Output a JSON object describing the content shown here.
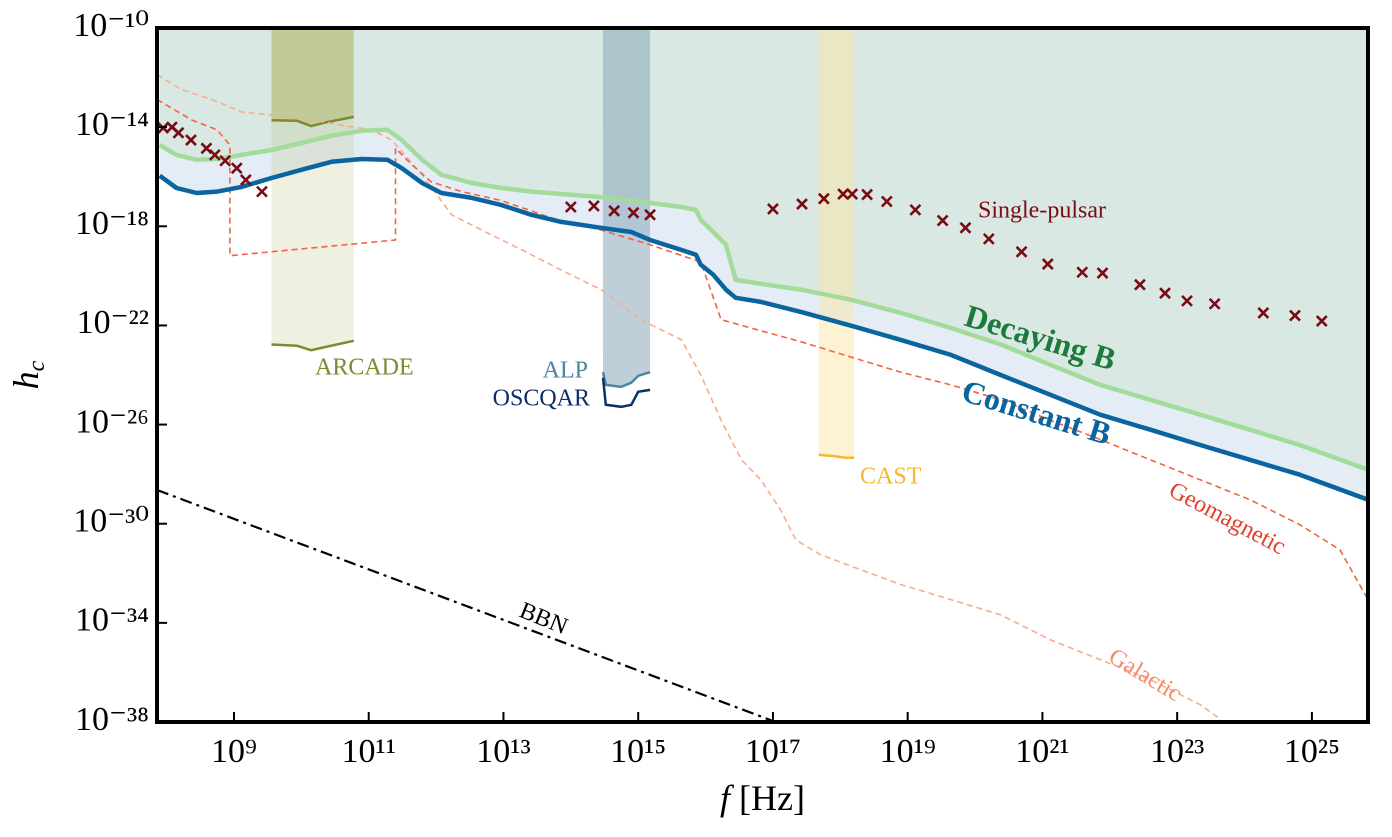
{
  "chart_data": {
    "type": "line",
    "xscale": "log",
    "yscale": "log",
    "xlim": [
      72000000.0,
      6.8e+25
    ],
    "ylim": [
      1e-38,
      1e-10
    ],
    "xticks": [
      {
        "value": 1000000000.0,
        "label": "10⁹"
      },
      {
        "value": 100000000000.0,
        "label": "10¹¹"
      },
      {
        "value": 10000000000000.0,
        "label": "10¹³"
      },
      {
        "value": 1000000000000000.0,
        "label": "10¹⁵"
      },
      {
        "value": 1e+17,
        "label": "10¹⁷"
      },
      {
        "value": 1e+19,
        "label": "10¹⁹"
      },
      {
        "value": 1e+21,
        "label": "10²¹"
      },
      {
        "value": 1e+23,
        "label": "10²³"
      },
      {
        "value": 1e+25,
        "label": "10²⁵"
      }
    ],
    "yticks": [
      {
        "value": 1e-10,
        "label": "10⁻¹⁰"
      },
      {
        "value": 1e-14,
        "label": "10⁻¹⁴"
      },
      {
        "value": 1e-18,
        "label": "10⁻¹⁸"
      },
      {
        "value": 1e-22,
        "label": "10⁻²²"
      },
      {
        "value": 1e-26,
        "label": "10⁻²⁶"
      },
      {
        "value": 1e-30,
        "label": "10⁻³⁰"
      },
      {
        "value": 1e-34,
        "label": "10⁻³⁴"
      },
      {
        "value": 1e-38,
        "label": "10⁻³⁸"
      }
    ],
    "x_label": {
      "symbol": "f",
      "unit": "[Hz]"
    },
    "y_label": {
      "symbol": "h",
      "subscript": "c"
    },
    "series": [
      {
        "name": "Constant B⃗",
        "color": "#0a64a0",
        "label_color": "#0a64a0",
        "dash": "solid",
        "width": 4.5,
        "fill": "#e4edf6",
        "x": [
          79000000.0,
          140000000.0,
          280000000.0,
          560000000.0,
          1300000000.0,
          3600000000.0,
          10000000000.0,
          28000000000.0,
          79000000000.0,
          190000000000.0,
          310000000000.0,
          620000000000.0,
          1200000000000.0,
          3400000000000.0,
          9300000000000.0,
          26000000000000.0,
          72000000000000.0,
          280000000000000.0,
          790000000000000.0,
          1500000000000000.0,
          4400000000000000.0,
          7200000000000000.0,
          8500000000000000.0,
          1.3e+16,
          2e+16,
          2.8e+16,
          6.6e+16,
          2.6e+17,
          1.4e+18,
          7.9e+18,
          4.4e+19,
          2.4e+20,
          1.3e+21,
          7.2e+21,
          4e+22,
          2.2e+23,
          1.2e+24,
          6.6e+24,
          6.8e+25
        ],
        "values": [
          1.1e-16,
          3.5e-17,
          2.2e-17,
          2.5e-17,
          3.9e-17,
          8.9e-17,
          1.9e-16,
          4e-16,
          5.2e-16,
          4.8e-16,
          2.2e-16,
          5.6e-17,
          2.2e-17,
          1.4e-17,
          7.2e-18,
          2.9e-18,
          1.5e-18,
          8.7e-19,
          5.9e-19,
          2.8e-19,
          1.1e-19,
          7.1e-20,
          2.8e-20,
          1.1e-20,
          2.8e-21,
          1.3e-21,
          8.9e-22,
          3.5e-22,
          1e-22,
          2.6e-23,
          6.5e-24,
          1e-24,
          1.6e-25,
          2.5e-26,
          6.2e-27,
          1.5e-27,
          3.8e-28,
          9.5e-29,
          9.3e-30
        ]
      },
      {
        "name": "Decaying B⃗",
        "color": "#a3dc9a",
        "label_color": "#1b7a3c",
        "dash": "solid",
        "width": 4.5,
        "fill": "#d9e8e3",
        "x": [
          79000000.0,
          140000000.0,
          280000000.0,
          560000000.0,
          1300000000.0,
          3600000000.0,
          10000000000.0,
          28000000000.0,
          79000000000.0,
          190000000000.0,
          310000000000.0,
          620000000000.0,
          1200000000000.0,
          3400000000000.0,
          9300000000000.0,
          26000000000000.0,
          72000000000000.0,
          280000000000000.0,
          790000000000000.0,
          1500000000000000.0,
          4400000000000000.0,
          7200000000000000.0,
          8500000000000000.0,
          1.3e+16,
          2e+16,
          2.8e+16,
          6.6e+16,
          2.6e+17,
          1.4e+18,
          7.9e+18,
          4.4e+19,
          2.4e+20,
          1.3e+21,
          7.2e+21,
          4e+22,
          2.2e+23,
          1.2e+24,
          6.6e+24,
          6.8e+25
        ],
        "values": [
          1.9e-15,
          7.6e-16,
          4.8e-16,
          5.2e-16,
          7.6e-16,
          1.2e-15,
          2.3e-15,
          4.5e-15,
          7.1e-15,
          7.8e-15,
          3e-15,
          4.8e-16,
          1.2e-16,
          5.6e-17,
          3.5e-17,
          2.5e-17,
          2e-17,
          1.5e-17,
          1.1e-17,
          8.7e-18,
          6e-18,
          4.6e-18,
          1.8e-18,
          5.9e-19,
          1.8e-19,
          6.9e-21,
          4.8e-21,
          2.8e-21,
          1.1e-21,
          3.2e-22,
          7.9e-23,
          1.7e-23,
          2.6e-24,
          4e-25,
          1e-25,
          2.5e-26,
          6.2e-27,
          1.5e-27,
          1.5e-28
        ]
      },
      {
        "name": "Geomagnetic",
        "color": "#f26440",
        "label_color": "#e0402a",
        "dash": "dashed",
        "width": 1.6,
        "x": [
          72000000.0,
          240000000.0,
          560000000.0,
          870000000.0,
          870000000.0,
          250000000000.0,
          250000000000.0,
          440000000000.0,
          850000000000.0,
          2400000000000.0,
          9300000000000.0,
          51000000000000.0,
          280000000000000.0,
          1500000000000000.0,
          8500000000000000.0,
          1.7e+16,
          4.7e+16,
          2.6e+17,
          1.4e+18,
          7.9e+18,
          4.4e+19,
          2.4e+20,
          1.3e+21,
          7.2e+21,
          4e+22,
          2.2e+23,
          1.2e+24,
          6.6e+24,
          2.6e+25,
          6.8e+25
        ],
        "values": [
          1.3e-13,
          1.9e-14,
          7.8e-15,
          1.9e-15,
          6.5e-20,
          2.8e-19,
          1.4e-15,
          3e-16,
          6.2e-17,
          2.5e-17,
          1.1e-17,
          2.2e-18,
          7.1e-19,
          1.8e-19,
          3.6e-20,
          1.7e-22,
          7.9e-23,
          2.2e-23,
          5.4e-24,
          1.3e-24,
          4e-25,
          1e-25,
          1.5e-26,
          2.5e-27,
          3.8e-28,
          5.9e-29,
          9.3e-30,
          9.1e-31,
          8.9e-32,
          8.7e-34
        ]
      },
      {
        "name": "Galactic",
        "color": "#f9ab8e",
        "label_color": "#f58a6a",
        "dash": "dashed",
        "width": 1.6,
        "x": [
          72000000.0,
          170000000.0,
          470000000.0,
          1300000000.0,
          10000000000.0,
          40000000000.0,
          110000000000.0,
          220000000000.0,
          620000000000.0,
          1700000000000.0,
          4700000000000.0,
          19000000000000.0,
          72000000000000.0,
          280000000000000.0,
          1100000000000000.0,
          4400000000000000.0,
          8500000000000000.0,
          1.7e+16,
          3.4e+16,
          6.6e+16,
          1.3e+17,
          2.2e+17,
          5.1e+17,
          2e+18,
          7.9e+18,
          4.4e+19,
          2.4e+20,
          1.3e+21,
          7.2e+21,
          4e+22,
          2.2e+23,
          4.4e+23
        ],
        "values": [
          1.3e-12,
          3.2e-13,
          1.3e-13,
          4.1e-14,
          2.3e-14,
          1.2e-14,
          7.8e-15,
          3e-15,
          1.2e-16,
          2.9e-18,
          7.1e-19,
          1.1e-19,
          1.7e-20,
          2.8e-21,
          1.7e-22,
          2.6e-23,
          1e-24,
          1.5e-26,
          3.8e-28,
          5.9e-29,
          3.6e-30,
          2.2e-31,
          5.6e-32,
          1.4e-32,
          3.5e-33,
          8.7e-34,
          2.1e-34,
          2.1e-35,
          3.3e-36,
          5.1e-37,
          5e-38,
          1.3e-38
        ]
      },
      {
        "name": "BBN",
        "color": "#000000",
        "label_color": "#000000",
        "dash": "dashdot",
        "width": 2.2,
        "x": [
          72000000.0,
          1.1e+17
        ],
        "values": [
          2.3e-29,
          1e-38
        ]
      }
    ],
    "experiments": [
      {
        "name": "ARCADE",
        "color": "#7d8a2e",
        "fill": "#b5bb72",
        "x": [
          3600000000.0,
          8600000000.0,
          14000000000.0,
          24000000000.0,
          60000000000.0
        ],
        "upper": [
          1.9e-14,
          1.8e-14,
          1.1e-14,
          1.6e-14,
          2.6e-14
        ],
        "lower": [
          1.7e-23,
          1.5e-23,
          1e-23,
          1.4e-23,
          2.4e-23
        ]
      },
      {
        "name": "ALP",
        "color": "#4a86a0",
        "fill": "#7f9fb4",
        "x": [
          300000000000000.0,
          330000000000000.0,
          560000000000000.0,
          790000000000000.0,
          1000000000000000.0,
          1500000000000000.0
        ],
        "upper": [
          1.3e-24,
          4e-25,
          3.3e-25,
          4.9e-25,
          9.3e-25,
          1.3e-24
        ]
      },
      {
        "name": "OSCQAR",
        "color": "#0d2f6b",
        "x": [
          300000000000000.0,
          330000000000000.0,
          560000000000000.0,
          790000000000000.0,
          1000000000000000.0,
          1500000000000000.0
        ],
        "upper": [
          7.8e-25,
          6.3e-26,
          5.2e-26,
          6.3e-26,
          2.1e-25,
          2.5e-25
        ]
      },
      {
        "name": "CAST",
        "color": "#f5b82e",
        "fill": "#fbe6a8",
        "x": [
          4.8e+17,
          7.2e+17,
          1.2e+18,
          1.6e+18
        ],
        "upper": [
          6e-28,
          5.5e-28,
          4.6e-28,
          4.6e-28
        ]
      }
    ],
    "single_pulsar": {
      "name": "Single-pulsar",
      "color": "#7a0a14",
      "x": [
        89000000.0,
        120000000.0,
        150000000.0,
        230000000.0,
        390000000.0,
        520000000.0,
        740000000.0,
        1100000000.0,
        1500000000.0,
        2600000000.0,
        100000000000000.0,
        220000000000000.0,
        440000000000000.0,
        850000000000000.0,
        1500000000000000.0,
        1e+17,
        2.7e+17,
        5.7e+17,
        1.1e+18,
        1.5e+18,
        2.5e+18,
        4.9e+18,
        1.3e+19,
        3.3e+19,
        7.2e+19,
        1.6e+20,
        4.9e+20,
        1.2e+21,
        3.9e+21,
        7.8e+21,
        2.8e+22,
        6.6e+22,
        1.4e+23,
        3.6e+23,
        1.9e+24,
        5.6e+24,
        1.4e+25
      ],
      "values": [
        9.3e-15,
        1e-14,
        5.9e-15,
        3e-15,
        1.4e-15,
        7.6e-16,
        4.4e-16,
        2.2e-16,
        7.4e-17,
        2.5e-17,
        6e-18,
        6.6e-18,
        4.2e-18,
        3.5e-18,
        2.9e-18,
        5e-18,
        7.9e-18,
        1.3e-17,
        2e-17,
        2e-17,
        1.9e-17,
        1e-17,
        4.6e-18,
        1.7e-18,
        8.7e-19,
        3.1e-19,
        9.3e-20,
        3e-20,
        1.4e-20,
        1.3e-20,
        4.4e-21,
        2e-21,
        9.8e-22,
        7.4e-22,
        3.2e-22,
        2.5e-22,
        1.5e-22
      ]
    }
  }
}
